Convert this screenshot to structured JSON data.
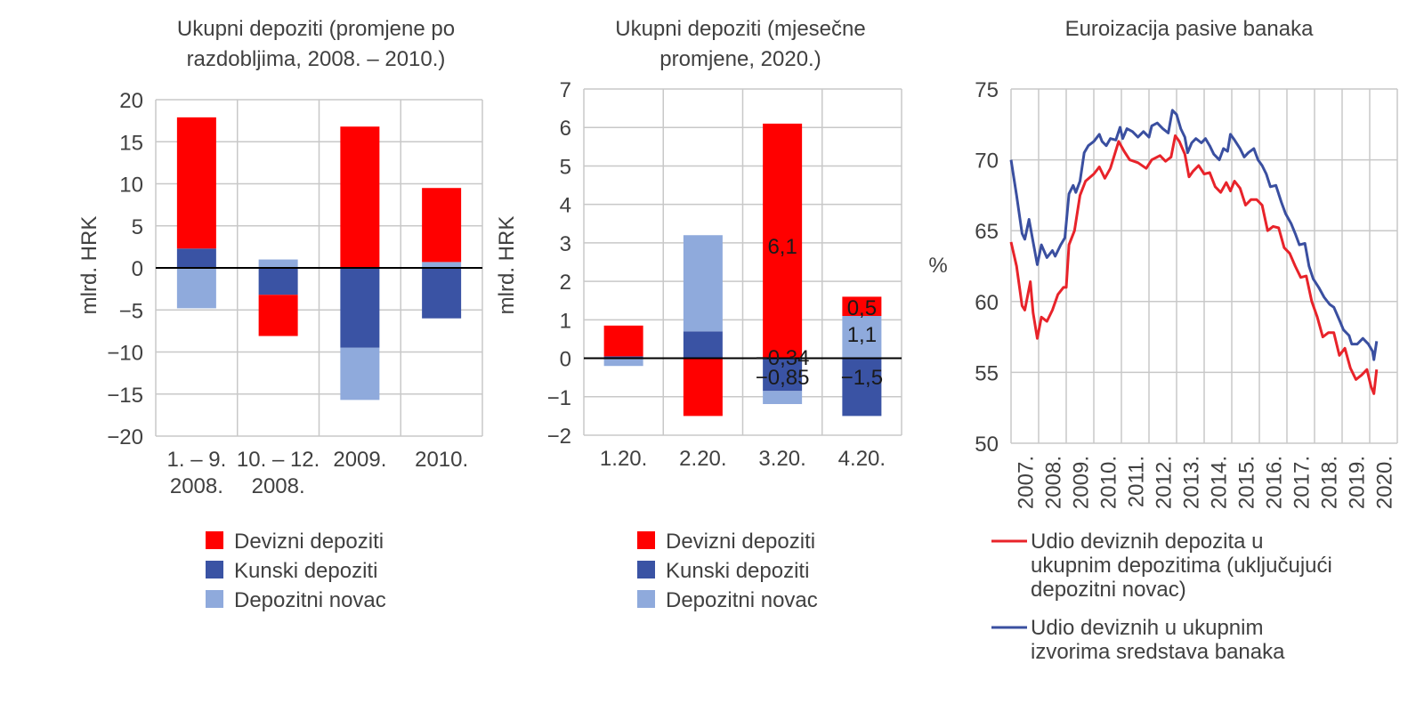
{
  "colors": {
    "devizni": "#ff0000",
    "kunski": "#3a53a4",
    "depozitni": "#8faadc",
    "line_red": "#e8232a",
    "line_blue": "#3a4fa0",
    "grid": "#c8c8c8",
    "text": "#404040"
  },
  "chart_data": [
    {
      "type": "bar",
      "stacked": true,
      "title": [
        "Ukupni depoziti (promjene po",
        "razdobljima, 2008. – 2010.)"
      ],
      "ylabel": "mlrd. HRK",
      "xlabel": "",
      "ylim": [
        -20,
        20
      ],
      "yticks": [
        20,
        15,
        10,
        5,
        0,
        -5,
        -10,
        -15,
        -20
      ],
      "ytick_labels": [
        "20",
        "15",
        "10",
        "5",
        "0",
        "−5",
        "−10",
        "−15",
        "−20"
      ],
      "categories": [
        [
          "1. – 9.",
          "2008."
        ],
        [
          "10. – 12.",
          "2008."
        ],
        [
          "2009.",
          ""
        ],
        [
          "2010.",
          ""
        ]
      ],
      "grid": true,
      "series": [
        {
          "name": "Devizni depoziti",
          "key": "devizni",
          "values": [
            15.6,
            -4.9,
            16.8,
            8.8
          ]
        },
        {
          "name": "Kunski depoziti",
          "key": "kunski",
          "values": [
            2.3,
            -3.2,
            -9.5,
            -6.0
          ]
        },
        {
          "name": "Depozitni novac",
          "key": "depozitni",
          "values": [
            -4.8,
            1.0,
            -6.2,
            0.7
          ]
        }
      ],
      "legend": [
        "Devizni depoziti",
        "Kunski depoziti",
        "Depozitni novac"
      ],
      "legend_position": "bottom"
    },
    {
      "type": "bar",
      "stacked": true,
      "title": [
        "Ukupni depoziti (mjesečne",
        "promjene, 2020.)"
      ],
      "ylabel": "mlrd. HRK",
      "xlabel": "",
      "ylim": [
        -2,
        7
      ],
      "yticks": [
        7,
        6,
        5,
        4,
        3,
        2,
        1,
        0,
        -1,
        -2
      ],
      "ytick_labels": [
        "7",
        "6",
        "5",
        "4",
        "3",
        "2",
        "1",
        "0",
        "−1",
        "−2"
      ],
      "categories": [
        "1.20.",
        "2.20.",
        "3.20.",
        "4.20."
      ],
      "grid": true,
      "series": [
        {
          "name": "Devizni depoziti",
          "key": "devizni",
          "values": [
            0.8,
            -1.5,
            6.1,
            0.5
          ]
        },
        {
          "name": "Kunski depoziti",
          "key": "kunski",
          "values": [
            0.05,
            0.7,
            -0.85,
            -1.5
          ]
        },
        {
          "name": "Depozitni novac",
          "key": "depozitni",
          "values": [
            -0.2,
            2.5,
            -0.34,
            1.1
          ]
        }
      ],
      "data_labels": [
        {
          "category": 2,
          "series": "devizni",
          "text": "6,1"
        },
        {
          "category": 2,
          "series": "depozitni",
          "text": "−0,34"
        },
        {
          "category": 2,
          "series": "kunski",
          "text": "−0,85"
        },
        {
          "category": 3,
          "series": "devizni",
          "text": "0,5"
        },
        {
          "category": 3,
          "series": "depozitni",
          "text": "1,1"
        },
        {
          "category": 3,
          "series": "kunski",
          "text": "−1,5"
        }
      ],
      "legend": [
        "Devizni depoziti",
        "Kunski depoziti",
        "Depozitni novac"
      ],
      "legend_position": "bottom"
    },
    {
      "type": "line",
      "title": [
        "Euroizacija pasive banaka"
      ],
      "ylabel": "%",
      "xlabel": "",
      "ylim": [
        50,
        75
      ],
      "xlim": [
        2007,
        2020.5
      ],
      "yticks": [
        75,
        70,
        65,
        60,
        55,
        50
      ],
      "xtick_labels": [
        "2007.",
        "2008.",
        "2009.",
        "2010.",
        "2011.",
        "2012.",
        "2013.",
        "2014.",
        "2015.",
        "2016.",
        "2017.",
        "2018.",
        "2019.",
        "2020."
      ],
      "grid": true,
      "series": [
        {
          "name": "Udio deviznih depozita u ukupnim depozitima (uključujući depozitni novac)",
          "key": "line_red",
          "x": [
            2007.0,
            2007.2,
            2007.4,
            2007.5,
            2007.7,
            2007.8,
            2007.95,
            2008.1,
            2008.3,
            2008.5,
            2008.7,
            2008.9,
            2009.0,
            2009.1,
            2009.3,
            2009.5,
            2009.7,
            2010.0,
            2010.2,
            2010.4,
            2010.6,
            2010.9,
            2011.1,
            2011.3,
            2011.6,
            2011.9,
            2012.1,
            2012.4,
            2012.6,
            2012.8,
            2012.95,
            2013.1,
            2013.3,
            2013.45,
            2013.6,
            2013.8,
            2014.0,
            2014.2,
            2014.4,
            2014.6,
            2014.8,
            2014.95,
            2015.1,
            2015.3,
            2015.5,
            2015.7,
            2015.9,
            2016.1,
            2016.3,
            2016.5,
            2016.7,
            2016.9,
            2017.1,
            2017.3,
            2017.5,
            2017.7,
            2017.9,
            2018.1,
            2018.3,
            2018.5,
            2018.7,
            2018.9,
            2019.1,
            2019.3,
            2019.5,
            2019.7,
            2019.9,
            2020.05,
            2020.15,
            2020.25
          ],
          "y": [
            64.2,
            62.5,
            59.7,
            59.4,
            61.4,
            59.2,
            57.4,
            58.9,
            58.6,
            59.4,
            60.5,
            61.0,
            61.0,
            64.0,
            65.0,
            67.5,
            68.5,
            69.0,
            69.5,
            68.7,
            69.4,
            71.3,
            70.6,
            70.0,
            69.8,
            69.4,
            70.0,
            70.3,
            69.9,
            70.2,
            71.7,
            71.3,
            70.4,
            68.8,
            69.2,
            69.6,
            69.0,
            69.1,
            68.1,
            67.7,
            68.4,
            67.8,
            68.5,
            68.0,
            66.8,
            67.2,
            67.2,
            66.8,
            65.0,
            65.3,
            65.2,
            63.8,
            63.4,
            62.5,
            61.7,
            61.8,
            60.0,
            58.9,
            57.5,
            57.8,
            57.8,
            56.2,
            56.7,
            55.3,
            54.5,
            54.8,
            55.2,
            54.0,
            53.5,
            55.2
          ]
        },
        {
          "name": "Udio deviznih u ukupnim izvorima sredstava banaka",
          "key": "line_blue",
          "x": [
            2007.0,
            2007.2,
            2007.4,
            2007.5,
            2007.65,
            2007.8,
            2007.95,
            2008.1,
            2008.3,
            2008.5,
            2008.6,
            2008.8,
            2008.95,
            2009.1,
            2009.25,
            2009.35,
            2009.5,
            2009.65,
            2009.8,
            2010.0,
            2010.2,
            2010.3,
            2010.45,
            2010.6,
            2010.8,
            2010.95,
            2011.05,
            2011.2,
            2011.4,
            2011.6,
            2011.8,
            2012.0,
            2012.1,
            2012.3,
            2012.5,
            2012.7,
            2012.85,
            2013.0,
            2013.15,
            2013.3,
            2013.4,
            2013.55,
            2013.7,
            2013.9,
            2014.05,
            2014.2,
            2014.35,
            2014.55,
            2014.7,
            2014.85,
            2014.95,
            2015.1,
            2015.3,
            2015.45,
            2015.6,
            2015.8,
            2015.95,
            2016.1,
            2016.25,
            2016.4,
            2016.6,
            2016.8,
            2016.95,
            2017.15,
            2017.3,
            2017.45,
            2017.65,
            2017.8,
            2017.95,
            2018.15,
            2018.35,
            2018.55,
            2018.7,
            2018.9,
            2019.05,
            2019.25,
            2019.35,
            2019.55,
            2019.75,
            2019.95,
            2020.1,
            2020.15,
            2020.25
          ],
          "y": [
            70.0,
            67.5,
            64.8,
            64.4,
            65.8,
            64.2,
            62.6,
            64.0,
            63.1,
            63.6,
            63.2,
            64.0,
            64.5,
            67.6,
            68.2,
            67.7,
            68.5,
            70.5,
            71.0,
            71.3,
            71.8,
            71.3,
            71.0,
            71.5,
            71.4,
            72.3,
            71.5,
            72.2,
            72.0,
            71.6,
            72.0,
            71.6,
            72.4,
            72.6,
            72.2,
            71.9,
            73.5,
            73.2,
            72.2,
            71.6,
            70.5,
            71.2,
            71.5,
            71.2,
            71.5,
            71.0,
            70.4,
            70.0,
            70.8,
            70.6,
            71.8,
            71.4,
            70.8,
            70.2,
            70.5,
            70.8,
            70.0,
            69.6,
            69.0,
            68.1,
            68.2,
            67.0,
            66.2,
            65.5,
            64.8,
            64.0,
            64.1,
            62.5,
            61.6,
            61.0,
            60.3,
            59.8,
            59.6,
            58.7,
            58.0,
            57.6,
            57.0,
            57.0,
            57.4,
            57.0,
            56.5,
            55.9,
            57.2
          ]
        }
      ],
      "legend": [
        [
          "Udio deviznih depozita u",
          "ukupnim depozitima (uključujući",
          "depozitni novac)"
        ],
        [
          "Udio deviznih u ukupnim",
          "izvorima sredstava banaka"
        ]
      ],
      "legend_position": "bottom"
    }
  ]
}
